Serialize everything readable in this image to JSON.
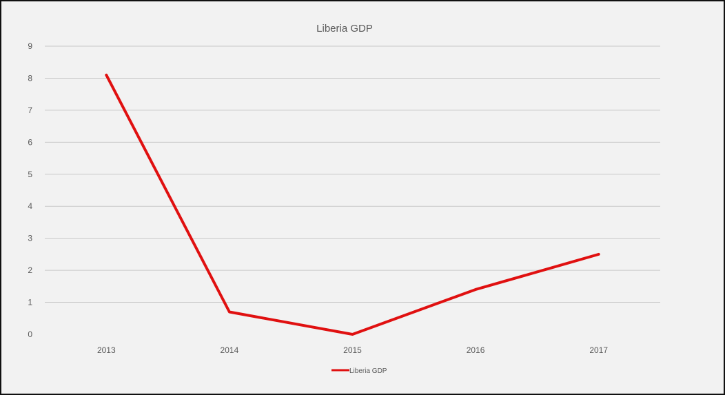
{
  "chart_data": {
    "type": "line",
    "title": "Liberia GDP",
    "xlabel": "",
    "ylabel": "",
    "categories": [
      "2013",
      "2014",
      "2015",
      "2016",
      "2017"
    ],
    "series": [
      {
        "name": "Liberia GDP",
        "values": [
          8.1,
          0.7,
          0.0,
          1.4,
          2.5
        ]
      }
    ],
    "ylim": [
      0,
      9
    ],
    "yticks": [
      "0",
      "1",
      "2",
      "3",
      "4",
      "5",
      "6",
      "7",
      "8",
      "9"
    ],
    "grid": true,
    "legend": "bottom",
    "colors": {
      "background": "#f2f2f2",
      "grid": "#c8c8c8",
      "line": "#e01010",
      "text": "#595959",
      "border": "#111111"
    }
  }
}
